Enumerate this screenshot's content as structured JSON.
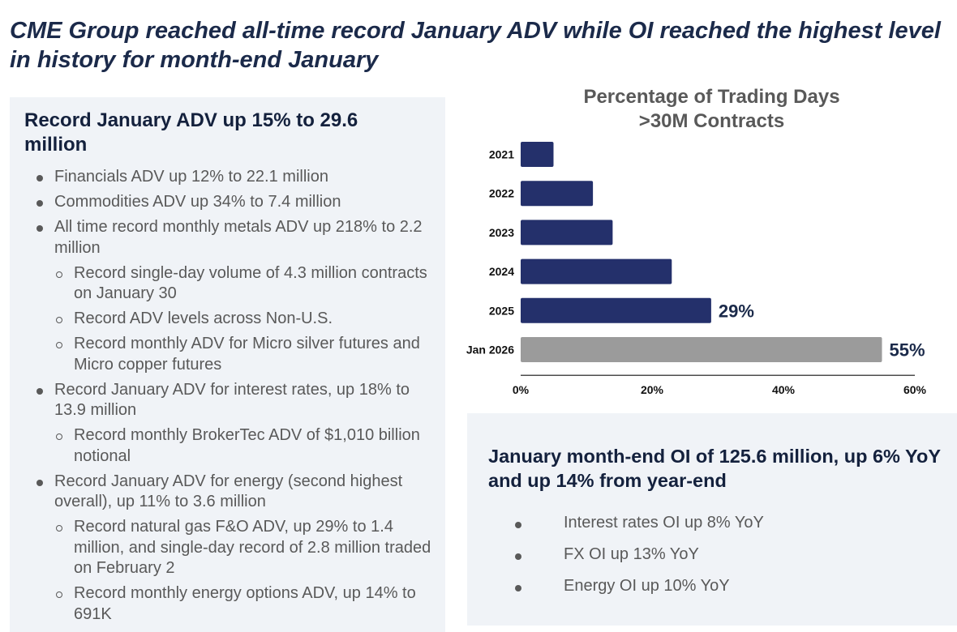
{
  "header": {
    "subtitle": "CME Group reached all-time record January ADV while OI reached the highest level in history for month-end January"
  },
  "adv_panel": {
    "heading": "Record January ADV up 15% to 29.6 million",
    "bullets": [
      {
        "level": 1,
        "text": "Financials ADV up 12% to 22.1 million"
      },
      {
        "level": 1,
        "text": "Commodities ADV up 34% to 7.4 million"
      },
      {
        "level": 1,
        "text": "All time record monthly metals ADV up 218% to 2.2 million"
      },
      {
        "level": 2,
        "text": "Record single-day volume of 4.3 million contracts on January 30"
      },
      {
        "level": 2,
        "text": "Record ADV levels across Non-U.S."
      },
      {
        "level": 2,
        "text": "Record monthly ADV for Micro silver futures and Micro copper futures"
      },
      {
        "level": 1,
        "text": "Record January ADV for interest rates, up 18% to 13.9 million"
      },
      {
        "level": 2,
        "text": "Record monthly BrokerTec ADV of $1,010 billion notional"
      },
      {
        "level": 1,
        "text": "Record January ADV for energy (second highest overall), up 11% to 3.6 million"
      },
      {
        "level": 2,
        "text": "Record natural gas F&O ADV, up 29% to 1.4 million, and single-day record of 2.8 million traded on February 2"
      },
      {
        "level": 2,
        "text": "Record monthly energy options ADV, up 14% to 691K"
      }
    ]
  },
  "oi_panel": {
    "heading": "January month-end OI of 125.6 million, up 6% YoY and up 14% from year-end",
    "bullets": [
      "Interest rates OI up 8% YoY",
      "FX OI up 13% YoY",
      "Energy OI up 10% YoY"
    ]
  },
  "chart_data": {
    "type": "bar",
    "orientation": "horizontal",
    "title": "Percentage of Trading Days >30M Contracts",
    "title_lines": [
      "Percentage of Trading Days",
      ">30M Contracts"
    ],
    "categories": [
      "2021",
      "2022",
      "2023",
      "2024",
      "2025",
      "Jan 2026"
    ],
    "values": [
      5,
      11,
      14,
      23,
      29,
      55
    ],
    "data_labels": [
      "",
      "",
      "",
      "",
      "29%",
      "55%"
    ],
    "bar_colors": [
      "#24306b",
      "#24306b",
      "#24306b",
      "#24306b",
      "#24306b",
      "#9b9b9b"
    ],
    "label_color": "#1b2a4a",
    "xlabel": "",
    "ylabel": "",
    "xlim": [
      0,
      60
    ],
    "xticks": [
      0,
      20,
      40,
      60
    ],
    "xtick_labels": [
      "0%",
      "20%",
      "40%",
      "60%"
    ],
    "grid": false,
    "legend": "none"
  }
}
